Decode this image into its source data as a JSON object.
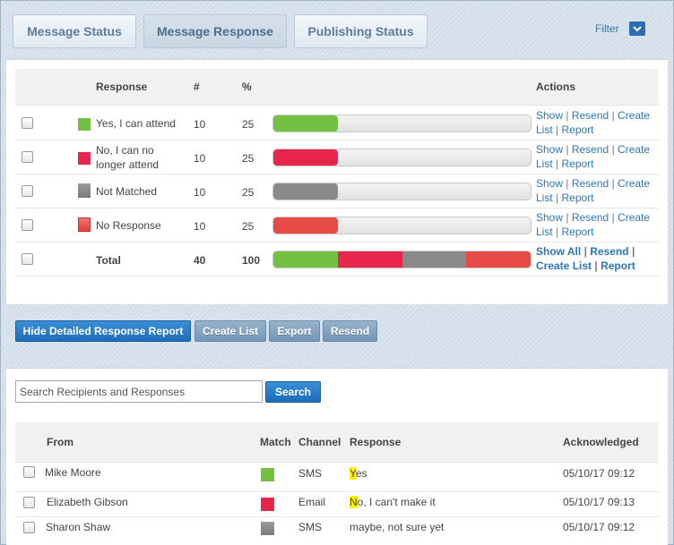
{
  "tabs": [
    {
      "label": "Message Status",
      "active": false
    },
    {
      "label": "Message Response",
      "active": true
    },
    {
      "label": "Publishing Status",
      "active": false
    }
  ],
  "filter": {
    "label": "Filter",
    "icon": "chevron-down-icon"
  },
  "summary": {
    "headers": {
      "response": "Response",
      "count": "#",
      "percent": "%",
      "actions": "Actions"
    },
    "rows": [
      {
        "label_lines": [
          "Yes, I can attend"
        ],
        "color": "#74c043",
        "count": "10",
        "percent": "25",
        "fraction": 0.25
      },
      {
        "label_lines": [
          "No, I can no",
          "longer attend"
        ],
        "color": "#e8264d",
        "count": "10",
        "percent": "25",
        "fraction": 0.25
      },
      {
        "label_lines": [
          "Not Matched"
        ],
        "color": "#8a8a8a",
        "count": "10",
        "percent": "25",
        "fraction": 0.25
      },
      {
        "label_lines": [
          "No Response"
        ],
        "color": "#e64b46",
        "count": "10",
        "percent": "25",
        "fraction": 0.25
      }
    ],
    "actions": {
      "show": "Show",
      "resend": "Resend",
      "create": "Create",
      "list": "List",
      "report": "Report",
      "sep": "|"
    },
    "total": {
      "label": "Total",
      "count": "40",
      "percent": "100",
      "actions": {
        "show_all": "Show All",
        "resend": "Resend",
        "create_list": "Create List",
        "report": "Report"
      }
    }
  },
  "buttons": {
    "hide_report": "Hide Detailed Response Report",
    "create_list": "Create List",
    "export": "Export",
    "resend": "Resend"
  },
  "search": {
    "placeholder": "Search Recipients and Responses",
    "button": "Search"
  },
  "recipients": {
    "headers": {
      "from": "From",
      "match": "Match",
      "channel": "Channel",
      "response": "Response",
      "acknowledged": "Acknowledged"
    },
    "rows": [
      {
        "from": "Mike Moore",
        "match_color": "#74c043",
        "channel": "SMS",
        "response_first": "Y",
        "response_rest": "es",
        "acknowledged": "05/10/17 09:12"
      },
      {
        "from": "Elizabeth Gibson",
        "match_color": "#e8264d",
        "channel": "Email",
        "response_first": "N",
        "response_rest": "o, I can't make it",
        "acknowledged": "05/10/17 09:13"
      },
      {
        "from": "Sharon Shaw",
        "match_color": "#8a8a8a",
        "channel": "SMS",
        "response_first": "",
        "response_rest": "maybe, not sure yet",
        "acknowledged": "05/10/17 09:12"
      }
    ]
  }
}
